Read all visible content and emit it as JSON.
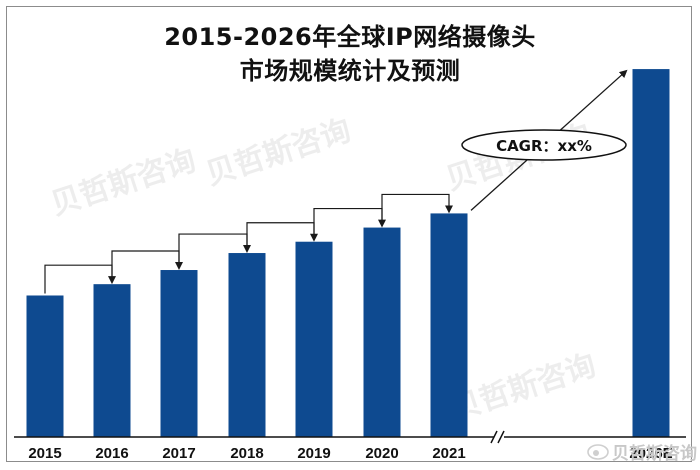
{
  "chart_data": {
    "type": "bar",
    "title": "2015-2026年全球IP网络摄像头市场规模统计及预测",
    "title_lines": [
      "2015-2026年全球IP网络摄像头",
      "市场规模统计及预测"
    ],
    "categories": [
      "2015",
      "2016",
      "2017",
      "2018",
      "2019",
      "2020",
      "2021",
      "2026E"
    ],
    "values": [
      1.0,
      1.08,
      1.18,
      1.3,
      1.38,
      1.48,
      1.58,
      2.6
    ],
    "ylim": [
      0,
      2.65
    ],
    "grid": false,
    "legend": "none",
    "axis_break_after": "2021",
    "annotation": "CAGR：xx%",
    "bar_color": "#0e4a90",
    "arrow_color": "#1a1a1a"
  },
  "watermark": {
    "text": "贝哲斯咨询",
    "social": "贝哲斯咨询"
  }
}
